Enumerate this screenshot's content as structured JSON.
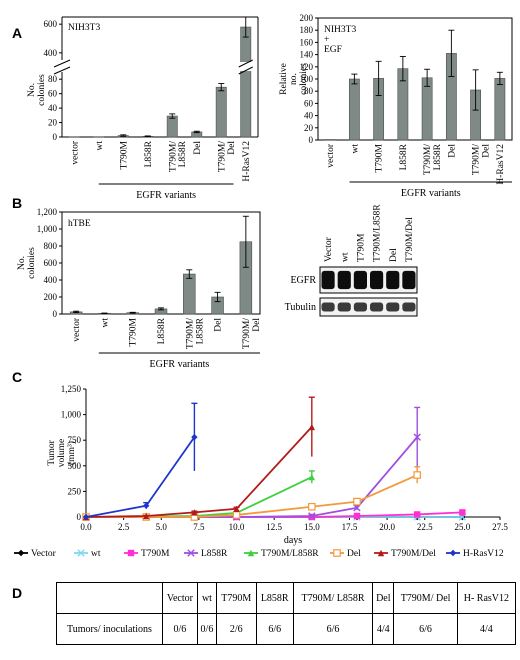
{
  "panels": {
    "a": "A",
    "b": "B",
    "c": "C",
    "d": "D"
  },
  "chart_data": [
    {
      "type": "bar",
      "panel": "A",
      "title": "NIH3T3",
      "ylabel": "No. colonies",
      "xgroup_label": "EGFR variants",
      "categories": [
        "vector",
        "wt",
        "T790M",
        "L858R",
        "T790M/ L858R",
        "Del",
        "T790M/ Del",
        "H-RasV12"
      ],
      "values": [
        0,
        0,
        2,
        1,
        29,
        7,
        69,
        580
      ],
      "errors": [
        0,
        0,
        1,
        0.5,
        3,
        1,
        5,
        70
      ],
      "yticks": [
        "0",
        "20",
        "40",
        "60",
        "80",
        "400",
        "600"
      ],
      "ylim_lower": [
        0,
        90
      ],
      "ylim_upper": [
        350,
        650
      ],
      "broken_axis": true
    },
    {
      "type": "bar",
      "panel": "A",
      "title": "NIH3T3 + EGF",
      "ylabel": "Relative no. colonies",
      "xgroup_label": "EGFR variants",
      "categories": [
        "vector",
        "wt",
        "T790M",
        "L858R",
        "T790M/ L858R",
        "Del",
        "T790M/ Del",
        "H-RasV12"
      ],
      "values": [
        0,
        100,
        101,
        117,
        102,
        142,
        82,
        101
      ],
      "errors": [
        0,
        8,
        28,
        20,
        14,
        38,
        33,
        10
      ],
      "yticks": [
        "0",
        "20",
        "40",
        "60",
        "80",
        "100",
        "120",
        "140",
        "160",
        "180",
        "200"
      ],
      "ylim": [
        0,
        200
      ]
    },
    {
      "type": "bar",
      "panel": "B",
      "title": "hTBE",
      "ylabel": "No. colonies",
      "xgroup_label": "EGFR variants",
      "categories": [
        "vector",
        "wt",
        "T790M",
        "L858R",
        "T790M/ L858R",
        "Del",
        "T790M/ Del"
      ],
      "values": [
        25,
        8,
        15,
        60,
        470,
        200,
        850
      ],
      "errors": [
        8,
        3,
        5,
        12,
        50,
        55,
        300
      ],
      "yticks": [
        "0",
        "200",
        "400",
        "600",
        "800",
        "1,000",
        "1,200"
      ],
      "ylim": [
        0,
        1200
      ]
    },
    {
      "type": "line",
      "panel": "C",
      "ylabel": "Tumor volume (mm³)",
      "xlabel": "days",
      "xlim": [
        0,
        27.5
      ],
      "ylim": [
        0,
        1250
      ],
      "xticks": [
        "0.0",
        "2.5",
        "5.0",
        "7.5",
        "10.0",
        "12.5",
        "15.0",
        "17.5",
        "20.0",
        "22.5",
        "25.0",
        "27.5"
      ],
      "yticks": [
        "0",
        "250",
        "500",
        "750",
        "1,000",
        "1,250"
      ],
      "series": [
        {
          "name": "Vector",
          "color": "#000000",
          "marker": "diamond",
          "x": [
            0,
            4,
            7.2,
            10,
            15,
            18,
            22,
            25
          ],
          "y": [
            0,
            0,
            0,
            0,
            0,
            0,
            0,
            0
          ],
          "err": [
            0,
            0,
            0,
            0,
            0,
            0,
            0,
            0
          ]
        },
        {
          "name": "wt",
          "color": "#7fd7f0",
          "marker": "x",
          "x": [
            0,
            4,
            7.2,
            10,
            15,
            18,
            22,
            25
          ],
          "y": [
            0,
            0,
            0,
            0,
            0,
            0,
            0,
            0
          ],
          "err": [
            0,
            0,
            0,
            0,
            0,
            0,
            0,
            0
          ]
        },
        {
          "name": "T790M",
          "color": "#ff2fd5",
          "marker": "square",
          "x": [
            0,
            4,
            7.2,
            10,
            15,
            18,
            22,
            25
          ],
          "y": [
            0,
            0,
            0,
            0,
            0,
            10,
            25,
            45
          ],
          "err": [
            0,
            0,
            0,
            0,
            0,
            5,
            12,
            20
          ]
        },
        {
          "name": "L858R",
          "color": "#a04fe0",
          "marker": "x",
          "x": [
            0,
            4,
            7.2,
            10,
            15,
            18,
            22
          ],
          "y": [
            0,
            0,
            0,
            0,
            10,
            90,
            780
          ],
          "err": [
            0,
            0,
            0,
            0,
            5,
            20,
            290
          ]
        },
        {
          "name": "T790M/L858R",
          "color": "#3fcf3f",
          "marker": "triangle",
          "x": [
            0,
            4,
            7.2,
            10,
            15
          ],
          "y": [
            0,
            5,
            10,
            40,
            390
          ],
          "err": [
            0,
            3,
            4,
            10,
            60
          ]
        },
        {
          "name": "Del",
          "color": "#f39a3c",
          "marker": "square-open",
          "x": [
            0,
            4,
            7.2,
            10,
            15,
            18,
            22
          ],
          "y": [
            0,
            0,
            0,
            20,
            100,
            150,
            410
          ],
          "err": [
            0,
            0,
            0,
            8,
            25,
            30,
            80
          ]
        },
        {
          "name": "T790M/Del",
          "color": "#b31b1b",
          "marker": "triangle",
          "x": [
            0,
            4,
            7.2,
            10,
            15
          ],
          "y": [
            0,
            10,
            45,
            80,
            880
          ],
          "err": [
            0,
            4,
            12,
            15,
            290
          ]
        },
        {
          "name": "H-RasV12",
          "color": "#1d35cc",
          "marker": "diamond",
          "x": [
            0,
            4,
            7.2
          ],
          "y": [
            0,
            110,
            780
          ],
          "err": [
            0,
            30,
            330
          ]
        }
      ]
    },
    {
      "type": "table",
      "panel": "D",
      "header": [
        "",
        "Vector",
        "wt",
        "T790M",
        "L858R",
        "T790M/ L858R",
        "Del",
        "T790M/ Del",
        "H- RasV12"
      ],
      "row_label": "Tumors/ inoculations",
      "cells": [
        "0/6",
        "0/6",
        "2/6",
        "6/6",
        "6/6",
        "4/4",
        "6/6",
        "4/4"
      ]
    }
  ],
  "blot": {
    "lanes": [
      "Vector",
      "wt",
      "T790M",
      "T790M/L858R",
      "Del",
      "T790M/Del"
    ],
    "rows": [
      "EGFR",
      "Tubulin"
    ]
  }
}
